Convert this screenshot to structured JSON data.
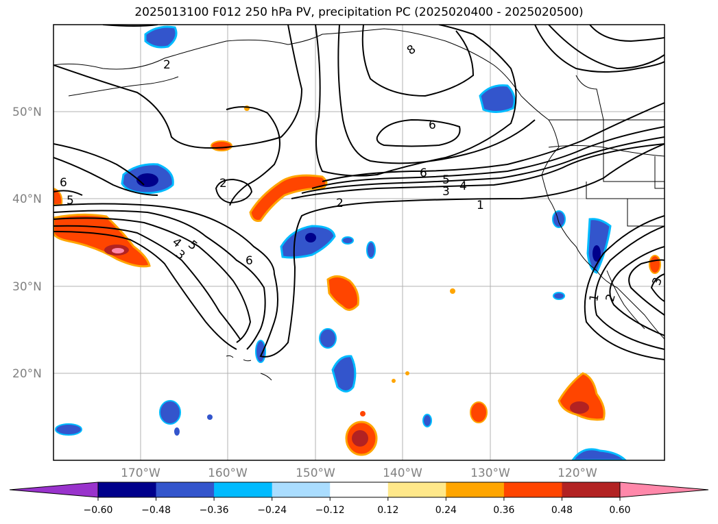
{
  "title": "2025013100 F012 250 hPa PV, precipitation PC (2025020400 - 2025020500)",
  "latitude_labels": [
    "50°N",
    "40°N",
    "30°N",
    "20°N"
  ],
  "longitude_labels": [
    "170°W",
    "160°W",
    "150°W",
    "140°W",
    "130°W",
    "120°W"
  ],
  "contour_labels": [
    "2",
    "8",
    "6",
    "6",
    "6",
    "5",
    "4",
    "3",
    "2",
    "1",
    "2",
    "5",
    "4",
    "5",
    "3",
    "6",
    "1",
    "2",
    "3"
  ],
  "colorbar": {
    "ticks": [
      "−0.60",
      "−0.48",
      "−0.36",
      "−0.24",
      "−0.12",
      "0.12",
      "0.24",
      "0.36",
      "0.48",
      "0.60"
    ],
    "colors": [
      "#9933cc",
      "#00008b",
      "#3355cc",
      "#00bbff",
      "#aaddff",
      "#ffffff",
      "#ffe88a",
      "#ffa500",
      "#ff4500",
      "#b22222",
      "#ff88aa"
    ]
  },
  "colors": {
    "grid": "#b0b0b0",
    "contour": "#000000",
    "coast": "#000000"
  }
}
